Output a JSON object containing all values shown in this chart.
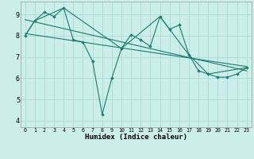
{
  "xlabel": "Humidex (Indice chaleur)",
  "ylabel": "",
  "bg_color": "#cceee8",
  "line_color": "#1a7a6e",
  "grid_color": "#aadddd",
  "x_ticks": [
    0,
    1,
    2,
    3,
    4,
    5,
    6,
    7,
    8,
    9,
    10,
    11,
    12,
    13,
    14,
    15,
    16,
    17,
    18,
    19,
    20,
    21,
    22,
    23
  ],
  "y_ticks": [
    4,
    5,
    6,
    7,
    8,
    9
  ],
  "xlim": [
    -0.5,
    23.5
  ],
  "ylim": [
    3.7,
    9.6
  ],
  "series1_x": [
    0,
    1,
    2,
    3,
    4,
    5,
    6,
    7,
    8,
    9,
    10,
    11,
    12,
    13,
    14,
    15,
    16,
    17,
    18,
    19,
    20,
    21,
    22,
    23
  ],
  "series1_y": [
    8.0,
    8.7,
    9.1,
    8.9,
    9.3,
    7.8,
    7.7,
    6.8,
    4.3,
    6.0,
    7.4,
    8.05,
    7.8,
    7.5,
    8.9,
    8.3,
    8.5,
    7.1,
    6.35,
    6.2,
    6.05,
    6.05,
    6.2,
    6.5
  ],
  "series2_x": [
    0,
    1,
    4,
    10,
    14,
    17,
    19,
    23
  ],
  "series2_y": [
    8.0,
    8.7,
    9.3,
    7.4,
    8.9,
    7.1,
    6.2,
    6.5
  ],
  "series3_x": [
    0,
    23
  ],
  "series3_y": [
    8.75,
    6.35
  ],
  "series4_x": [
    0,
    23
  ],
  "series4_y": [
    8.1,
    6.55
  ]
}
